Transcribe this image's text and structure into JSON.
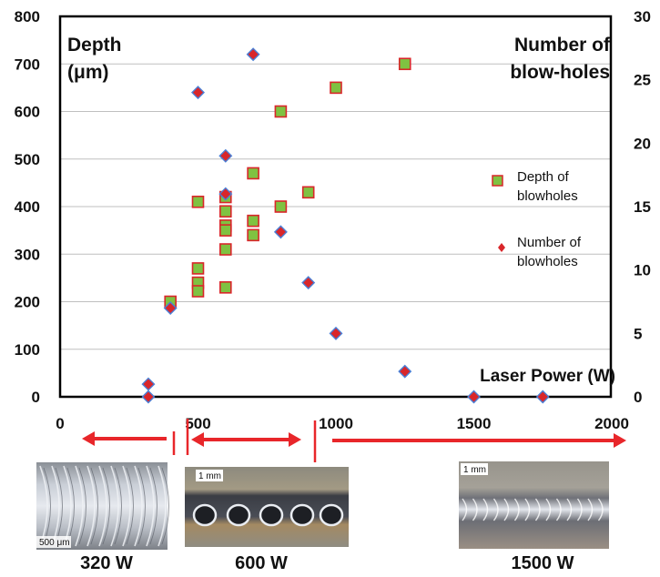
{
  "chart_data": {
    "type": "scatter",
    "left_axis": {
      "title_line1": "Depth",
      "title_line2": "(μm)",
      "range": [
        0,
        800
      ],
      "ticks": [
        "0",
        "100",
        "200",
        "300",
        "400",
        "500",
        "600",
        "700",
        "800"
      ]
    },
    "right_axis": {
      "title_line1": "Number of",
      "title_line2": "blow-holes",
      "range": [
        0,
        30
      ],
      "ticks": [
        "0",
        "5",
        "10",
        "15",
        "20",
        "25",
        "30"
      ]
    },
    "x_axis": {
      "label": "Laser Power (W)",
      "range": [
        0,
        2000
      ],
      "ticks": [
        "0",
        "500",
        "1000",
        "1500",
        "2000"
      ]
    },
    "series": [
      {
        "name": "Depth of blowholes",
        "legend_line1": "Depth of",
        "legend_line2": "blowholes",
        "marker": "square",
        "axis": "left",
        "color": "#7fc241",
        "edge": "#d9262a",
        "points": [
          [
            400,
            200
          ],
          [
            500,
            410
          ],
          [
            500,
            270
          ],
          [
            500,
            240
          ],
          [
            500,
            222
          ],
          [
            600,
            420
          ],
          [
            600,
            390
          ],
          [
            600,
            360
          ],
          [
            600,
            350
          ],
          [
            600,
            310
          ],
          [
            600,
            230
          ],
          [
            700,
            470
          ],
          [
            700,
            370
          ],
          [
            700,
            340
          ],
          [
            800,
            600
          ],
          [
            800,
            400
          ],
          [
            900,
            430
          ],
          [
            1000,
            650
          ],
          [
            1250,
            700
          ]
        ]
      },
      {
        "name": "Number of blowholes",
        "legend_line1": "Number of",
        "legend_line2": "blowholes",
        "marker": "diamond",
        "axis": "right",
        "color": "#d9262a",
        "edge": "#4a7fd6",
        "points": [
          [
            320,
            1
          ],
          [
            320,
            0
          ],
          [
            400,
            7
          ],
          [
            500,
            24
          ],
          [
            600,
            19
          ],
          [
            600,
            16
          ],
          [
            700,
            27
          ],
          [
            800,
            13
          ],
          [
            900,
            9
          ],
          [
            1000,
            5
          ],
          [
            1250,
            2
          ],
          [
            1500,
            0
          ],
          [
            1750,
            0
          ]
        ]
      }
    ]
  },
  "captions": {
    "low": "320 W",
    "mid": "600 W",
    "high": "1500 W"
  },
  "scale_bars": {
    "low": "500 μm",
    "mid": "1 mm",
    "high": "1 mm"
  },
  "colors": {
    "arrow": "#e8262a",
    "grid": "#bfbfbf",
    "frame": "#000000"
  }
}
